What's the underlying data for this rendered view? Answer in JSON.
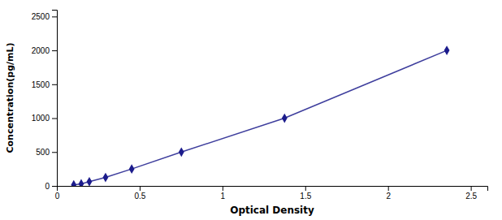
{
  "chart_data": {
    "type": "line",
    "x_label": "Optical Density",
    "y_label": "Concentration(pg/mL)",
    "x": [
      0.102,
      0.147,
      0.196,
      0.294,
      0.452,
      0.752,
      1.375,
      2.355
    ],
    "values": [
      15.6,
      31.25,
      62.5,
      125,
      250,
      500,
      1000,
      2000
    ],
    "color": "#1C1C8C",
    "marker": "diamond",
    "xlim": [
      0,
      2.6
    ],
    "ylim": [
      0,
      2600
    ],
    "xticks": [
      0,
      0.5,
      1,
      1.5,
      2,
      2.5
    ],
    "yticks": [
      0,
      500,
      1000,
      1500,
      2000,
      2500
    ],
    "grid": false
  }
}
